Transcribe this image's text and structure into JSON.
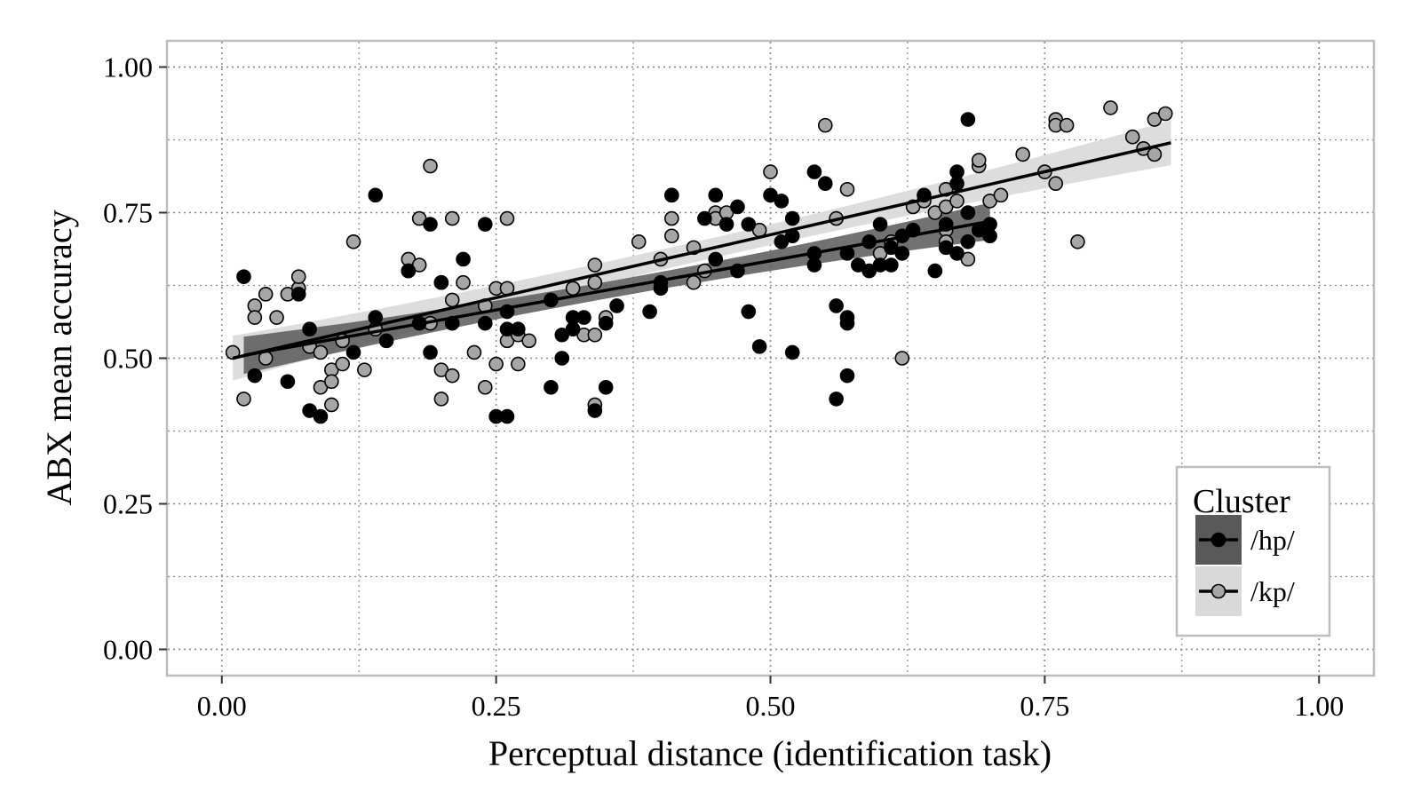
{
  "chart_data": {
    "type": "scatter",
    "title": "",
    "xlabel": "Perceptual distance (identification task)",
    "ylabel": "ABX mean accuracy",
    "xlim": [
      -0.05,
      1.05
    ],
    "ylim": [
      -0.045,
      1.045
    ],
    "x_ticks": [
      "0.00",
      "0.25",
      "0.50",
      "0.75",
      "1.00"
    ],
    "y_ticks": [
      "0.00",
      "0.25",
      "0.50",
      "0.75",
      "1.00"
    ],
    "grid": "dotted, major and minor",
    "legend": {
      "title": "Cluster",
      "position": "bottom-right",
      "entries": [
        "/hp/",
        "/kp/"
      ]
    },
    "series": [
      {
        "name": "/hp/",
        "color": "#000000",
        "band_color": "#595959",
        "fit": {
          "x0": 0.02,
          "y0": 0.505,
          "x1": 0.7,
          "y1": 0.735,
          "se": 0.02
        },
        "points": [
          [
            0.02,
            0.64
          ],
          [
            0.03,
            0.47
          ],
          [
            0.06,
            0.46
          ],
          [
            0.07,
            0.61
          ],
          [
            0.08,
            0.55
          ],
          [
            0.08,
            0.41
          ],
          [
            0.09,
            0.4
          ],
          [
            0.12,
            0.51
          ],
          [
            0.14,
            0.78
          ],
          [
            0.14,
            0.57
          ],
          [
            0.15,
            0.53
          ],
          [
            0.17,
            0.65
          ],
          [
            0.18,
            0.56
          ],
          [
            0.19,
            0.73
          ],
          [
            0.19,
            0.51
          ],
          [
            0.2,
            0.63
          ],
          [
            0.21,
            0.56
          ],
          [
            0.22,
            0.67
          ],
          [
            0.24,
            0.56
          ],
          [
            0.24,
            0.73
          ],
          [
            0.25,
            0.4
          ],
          [
            0.26,
            0.58
          ],
          [
            0.26,
            0.55
          ],
          [
            0.27,
            0.55
          ],
          [
            0.26,
            0.4
          ],
          [
            0.3,
            0.6
          ],
          [
            0.3,
            0.45
          ],
          [
            0.31,
            0.54
          ],
          [
            0.31,
            0.5
          ],
          [
            0.32,
            0.55
          ],
          [
            0.32,
            0.57
          ],
          [
            0.33,
            0.57
          ],
          [
            0.34,
            0.41
          ],
          [
            0.35,
            0.45
          ],
          [
            0.35,
            0.56
          ],
          [
            0.36,
            0.59
          ],
          [
            0.39,
            0.58
          ],
          [
            0.4,
            0.62
          ],
          [
            0.4,
            0.63
          ],
          [
            0.41,
            0.78
          ],
          [
            0.44,
            0.74
          ],
          [
            0.45,
            0.78
          ],
          [
            0.45,
            0.67
          ],
          [
            0.46,
            0.73
          ],
          [
            0.47,
            0.76
          ],
          [
            0.47,
            0.65
          ],
          [
            0.48,
            0.73
          ],
          [
            0.48,
            0.58
          ],
          [
            0.49,
            0.52
          ],
          [
            0.5,
            0.78
          ],
          [
            0.51,
            0.77
          ],
          [
            0.51,
            0.7
          ],
          [
            0.52,
            0.74
          ],
          [
            0.52,
            0.71
          ],
          [
            0.52,
            0.51
          ],
          [
            0.54,
            0.82
          ],
          [
            0.54,
            0.68
          ],
          [
            0.54,
            0.66
          ],
          [
            0.55,
            0.8
          ],
          [
            0.56,
            0.59
          ],
          [
            0.56,
            0.43
          ],
          [
            0.57,
            0.57
          ],
          [
            0.57,
            0.56
          ],
          [
            0.57,
            0.47
          ],
          [
            0.57,
            0.68
          ],
          [
            0.58,
            0.66
          ],
          [
            0.59,
            0.65
          ],
          [
            0.59,
            0.7
          ],
          [
            0.6,
            0.66
          ],
          [
            0.6,
            0.73
          ],
          [
            0.61,
            0.66
          ],
          [
            0.61,
            0.69
          ],
          [
            0.62,
            0.68
          ],
          [
            0.62,
            0.71
          ],
          [
            0.63,
            0.72
          ],
          [
            0.64,
            0.78
          ],
          [
            0.65,
            0.65
          ],
          [
            0.66,
            0.69
          ],
          [
            0.66,
            0.73
          ],
          [
            0.67,
            0.8
          ],
          [
            0.67,
            0.82
          ],
          [
            0.67,
            0.68
          ],
          [
            0.68,
            0.7
          ],
          [
            0.68,
            0.75
          ],
          [
            0.68,
            0.91
          ],
          [
            0.69,
            0.72
          ],
          [
            0.7,
            0.71
          ],
          [
            0.7,
            0.73
          ]
        ]
      },
      {
        "name": "/kp/",
        "color": "#a6a6a6",
        "band_color": "#d9d9d9",
        "fit": {
          "x0": 0.01,
          "y0": 0.5,
          "x1": 0.865,
          "y1": 0.87,
          "se": 0.024
        },
        "points": [
          [
            0.01,
            0.51
          ],
          [
            0.02,
            0.43
          ],
          [
            0.03,
            0.59
          ],
          [
            0.03,
            0.57
          ],
          [
            0.04,
            0.5
          ],
          [
            0.04,
            0.61
          ],
          [
            0.05,
            0.57
          ],
          [
            0.06,
            0.61
          ],
          [
            0.07,
            0.62
          ],
          [
            0.07,
            0.64
          ],
          [
            0.08,
            0.52
          ],
          [
            0.09,
            0.51
          ],
          [
            0.09,
            0.45
          ],
          [
            0.1,
            0.48
          ],
          [
            0.1,
            0.42
          ],
          [
            0.1,
            0.46
          ],
          [
            0.11,
            0.53
          ],
          [
            0.11,
            0.49
          ],
          [
            0.12,
            0.7
          ],
          [
            0.13,
            0.48
          ],
          [
            0.14,
            0.55
          ],
          [
            0.17,
            0.67
          ],
          [
            0.17,
            0.65
          ],
          [
            0.18,
            0.74
          ],
          [
            0.18,
            0.66
          ],
          [
            0.19,
            0.83
          ],
          [
            0.19,
            0.56
          ],
          [
            0.2,
            0.63
          ],
          [
            0.2,
            0.43
          ],
          [
            0.2,
            0.48
          ],
          [
            0.21,
            0.47
          ],
          [
            0.21,
            0.6
          ],
          [
            0.21,
            0.74
          ],
          [
            0.22,
            0.63
          ],
          [
            0.23,
            0.51
          ],
          [
            0.24,
            0.45
          ],
          [
            0.24,
            0.59
          ],
          [
            0.25,
            0.49
          ],
          [
            0.25,
            0.62
          ],
          [
            0.26,
            0.74
          ],
          [
            0.26,
            0.53
          ],
          [
            0.26,
            0.62
          ],
          [
            0.27,
            0.49
          ],
          [
            0.27,
            0.54
          ],
          [
            0.28,
            0.53
          ],
          [
            0.32,
            0.62
          ],
          [
            0.33,
            0.54
          ],
          [
            0.34,
            0.54
          ],
          [
            0.34,
            0.42
          ],
          [
            0.34,
            0.63
          ],
          [
            0.34,
            0.66
          ],
          [
            0.35,
            0.57
          ],
          [
            0.38,
            0.7
          ],
          [
            0.4,
            0.67
          ],
          [
            0.41,
            0.78
          ],
          [
            0.41,
            0.71
          ],
          [
            0.41,
            0.74
          ],
          [
            0.43,
            0.69
          ],
          [
            0.43,
            0.63
          ],
          [
            0.44,
            0.65
          ],
          [
            0.45,
            0.75
          ],
          [
            0.45,
            0.74
          ],
          [
            0.46,
            0.75
          ],
          [
            0.49,
            0.72
          ],
          [
            0.5,
            0.82
          ],
          [
            0.55,
            0.9
          ],
          [
            0.56,
            0.74
          ],
          [
            0.57,
            0.79
          ],
          [
            0.6,
            0.68
          ],
          [
            0.61,
            0.7
          ],
          [
            0.62,
            0.5
          ],
          [
            0.63,
            0.76
          ],
          [
            0.64,
            0.77
          ],
          [
            0.65,
            0.75
          ],
          [
            0.66,
            0.72
          ],
          [
            0.66,
            0.76
          ],
          [
            0.66,
            0.79
          ],
          [
            0.66,
            0.7
          ],
          [
            0.67,
            0.77
          ],
          [
            0.68,
            0.67
          ],
          [
            0.69,
            0.83
          ],
          [
            0.69,
            0.84
          ],
          [
            0.7,
            0.77
          ],
          [
            0.71,
            0.78
          ],
          [
            0.73,
            0.85
          ],
          [
            0.75,
            0.82
          ],
          [
            0.76,
            0.8
          ],
          [
            0.76,
            0.91
          ],
          [
            0.76,
            0.9
          ],
          [
            0.77,
            0.9
          ],
          [
            0.78,
            0.7
          ],
          [
            0.81,
            0.93
          ],
          [
            0.83,
            0.88
          ],
          [
            0.84,
            0.86
          ],
          [
            0.85,
            0.91
          ],
          [
            0.85,
            0.85
          ],
          [
            0.86,
            0.92
          ]
        ]
      }
    ]
  }
}
